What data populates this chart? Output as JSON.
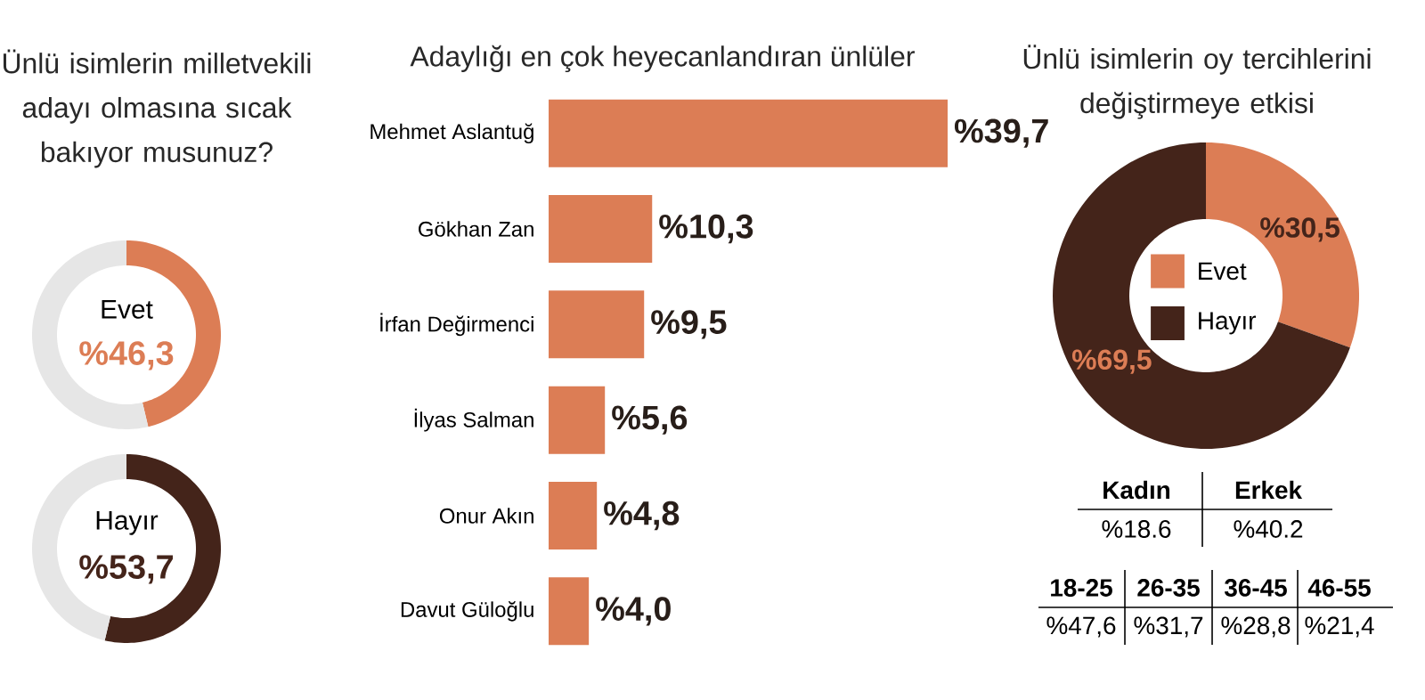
{
  "chart_data": [
    {
      "type": "donut",
      "title": "Ünlü isimlerin milletvekili adayı olmasına sıcak bakıyor musunuz?",
      "categories": [
        "Evet",
        null
      ],
      "values": [
        46.3,
        53.7
      ],
      "colors": [
        "#dc7d55",
        "#e6e6e6"
      ],
      "value_labels": [
        "%46,3",
        null
      ]
    },
    {
      "type": "donut",
      "categories": [
        "Hayır",
        null
      ],
      "values": [
        53.7,
        46.3
      ],
      "colors": [
        "#44241a",
        "#e6e6e6"
      ],
      "value_labels": [
        "%53,7",
        null
      ]
    },
    {
      "type": "bar",
      "orientation": "horizontal",
      "title": "Adaylığı en çok heyecanlandıran ünlüler",
      "categories": [
        "Mehmet Aslantuğ",
        "Gökhan Zan",
        "İrfan Değirmenci",
        "İlyas Salman",
        "Onur Akın",
        "Davut Güloğlu"
      ],
      "values": [
        39.7,
        10.3,
        9.5,
        5.6,
        4.8,
        4.0
      ],
      "color": "#dc7d55",
      "value_labels": [
        "%39,7",
        "%10,3",
        "%9,5",
        "%5,6",
        "%4,8",
        "%4,0"
      ]
    },
    {
      "type": "donut",
      "title": "Ünlü isimlerin oy tercihlerini değiştirmeye etkisi",
      "categories": [
        "Evet",
        "Hayır"
      ],
      "values": [
        30.5,
        69.5
      ],
      "colors": [
        "#dc7d55",
        "#44241a"
      ],
      "value_labels": [
        "%30,5",
        "%69,5"
      ],
      "legend": "center"
    },
    {
      "type": "other",
      "categories": [
        "Kadın",
        "Erkek"
      ],
      "value_labels": [
        "%18.6",
        "%40.2"
      ]
    },
    {
      "type": "other",
      "categories": [
        "18-25",
        "26-35",
        "36-45",
        "46-55"
      ],
      "value_labels": [
        "%47,6",
        "%31,7",
        "%28,8",
        "%21,4"
      ]
    }
  ]
}
